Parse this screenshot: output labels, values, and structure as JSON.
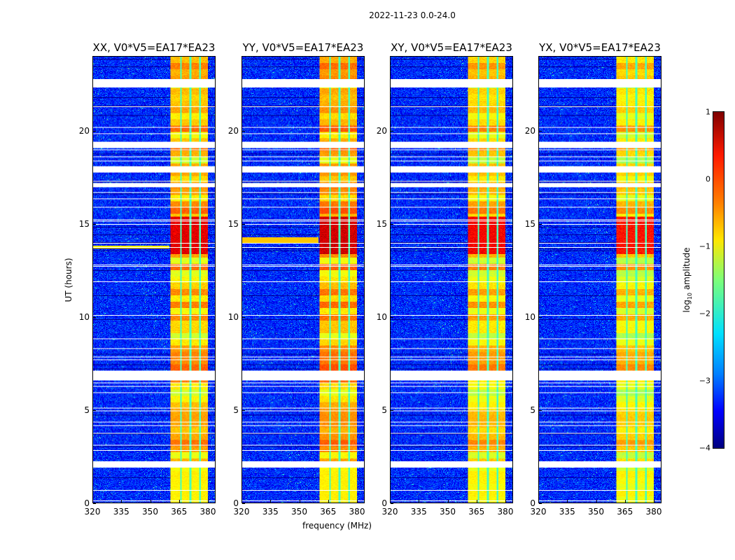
{
  "chart_data": {
    "type": "heatmap",
    "title": "2022-11-23 0.0-24.0",
    "xlabel": "frequency (MHz)",
    "ylabel": "UT (hours)",
    "xlim": [
      320,
      384
    ],
    "ylim": [
      0,
      24
    ],
    "xticks": [
      "320",
      "335",
      "350",
      "365",
      "380"
    ],
    "xtick_values": [
      320,
      335,
      350,
      365,
      380
    ],
    "yticks": [
      "0",
      "5",
      "10",
      "15",
      "20"
    ],
    "ytick_values": [
      0,
      5,
      10,
      15,
      20
    ],
    "panels": [
      {
        "title": "XX, V0*V5=EA17*EA23",
        "band_log_amp": -0.6,
        "peak_log_amp": 0.6
      },
      {
        "title": "YY, V0*V5=EA17*EA23",
        "band_log_amp": -0.5,
        "peak_log_amp": 0.7
      },
      {
        "title": "XY, V0*V5=EA17*EA23",
        "band_log_amp": -0.7,
        "peak_log_amp": 0.5
      },
      {
        "title": "YX, V0*V5=EA17*EA23",
        "band_log_amp": -0.8,
        "peak_log_amp": 0.4
      }
    ],
    "background_log_amp": -3.2,
    "band_mhz": [
      360.5,
      380
    ],
    "band_gaps_mhz": [
      366,
      371,
      376
    ],
    "peak_hours": [
      13.4,
      15.4
    ],
    "flagged_hours": [
      [
        1.9,
        2.2
      ],
      [
        6.6,
        7.1
      ],
      [
        17.0,
        17.2
      ],
      [
        17.8,
        18.1
      ],
      [
        19.1,
        19.4
      ],
      [
        22.4,
        22.8
      ]
    ],
    "colorbar": {
      "label_main": "log",
      "label_sub": "10",
      "label_rest": " amplitude",
      "colormap": "jet",
      "range": [
        -4,
        1
      ],
      "ticks": [
        "1",
        "0",
        "−1",
        "−2",
        "−3",
        "−4"
      ],
      "tick_values": [
        1,
        0,
        -1,
        -2,
        -3,
        -4
      ]
    }
  }
}
